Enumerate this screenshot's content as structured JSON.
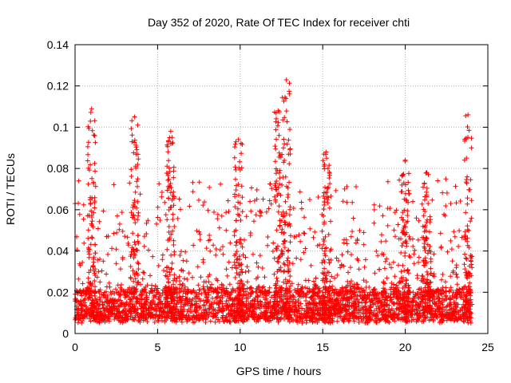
{
  "chart_data": {
    "type": "scatter",
    "title": "Day 352 of 2020, Rate Of TEC Index for receiver chti",
    "xlabel": "GPS time / hours",
    "ylabel": "ROTI / TECUs",
    "xlim": [
      0,
      25
    ],
    "ylim": [
      0,
      0.14
    ],
    "grid": true,
    "marker": "plus",
    "series_color": "#ff0000",
    "x_ticks": [
      0,
      5,
      10,
      15,
      20,
      25
    ],
    "x_tick_labels": [
      "0",
      "5",
      "10",
      "15",
      "20",
      "25"
    ],
    "y_ticks": [
      0,
      0.02,
      0.04,
      0.06,
      0.08,
      0.1,
      0.12,
      0.14
    ],
    "y_tick_labels": [
      "0",
      "0.02",
      "0.04",
      "0.06",
      "0.08",
      "0.1",
      "0.12",
      "0.14"
    ],
    "series": [
      {
        "name": "ROTI",
        "x_range": [
          0,
          24
        ],
        "baseline_band": [
          0.005,
          0.02
        ],
        "notable_peaks": [
          {
            "x": 1.0,
            "y": 0.109
          },
          {
            "x": 3.6,
            "y": 0.105
          },
          {
            "x": 5.8,
            "y": 0.098
          },
          {
            "x": 9.9,
            "y": 0.094
          },
          {
            "x": 12.3,
            "y": 0.108
          },
          {
            "x": 12.8,
            "y": 0.123
          },
          {
            "x": 15.2,
            "y": 0.088
          },
          {
            "x": 20.0,
            "y": 0.084
          },
          {
            "x": 21.3,
            "y": 0.078
          },
          {
            "x": 23.8,
            "y": 0.106
          }
        ]
      }
    ]
  }
}
